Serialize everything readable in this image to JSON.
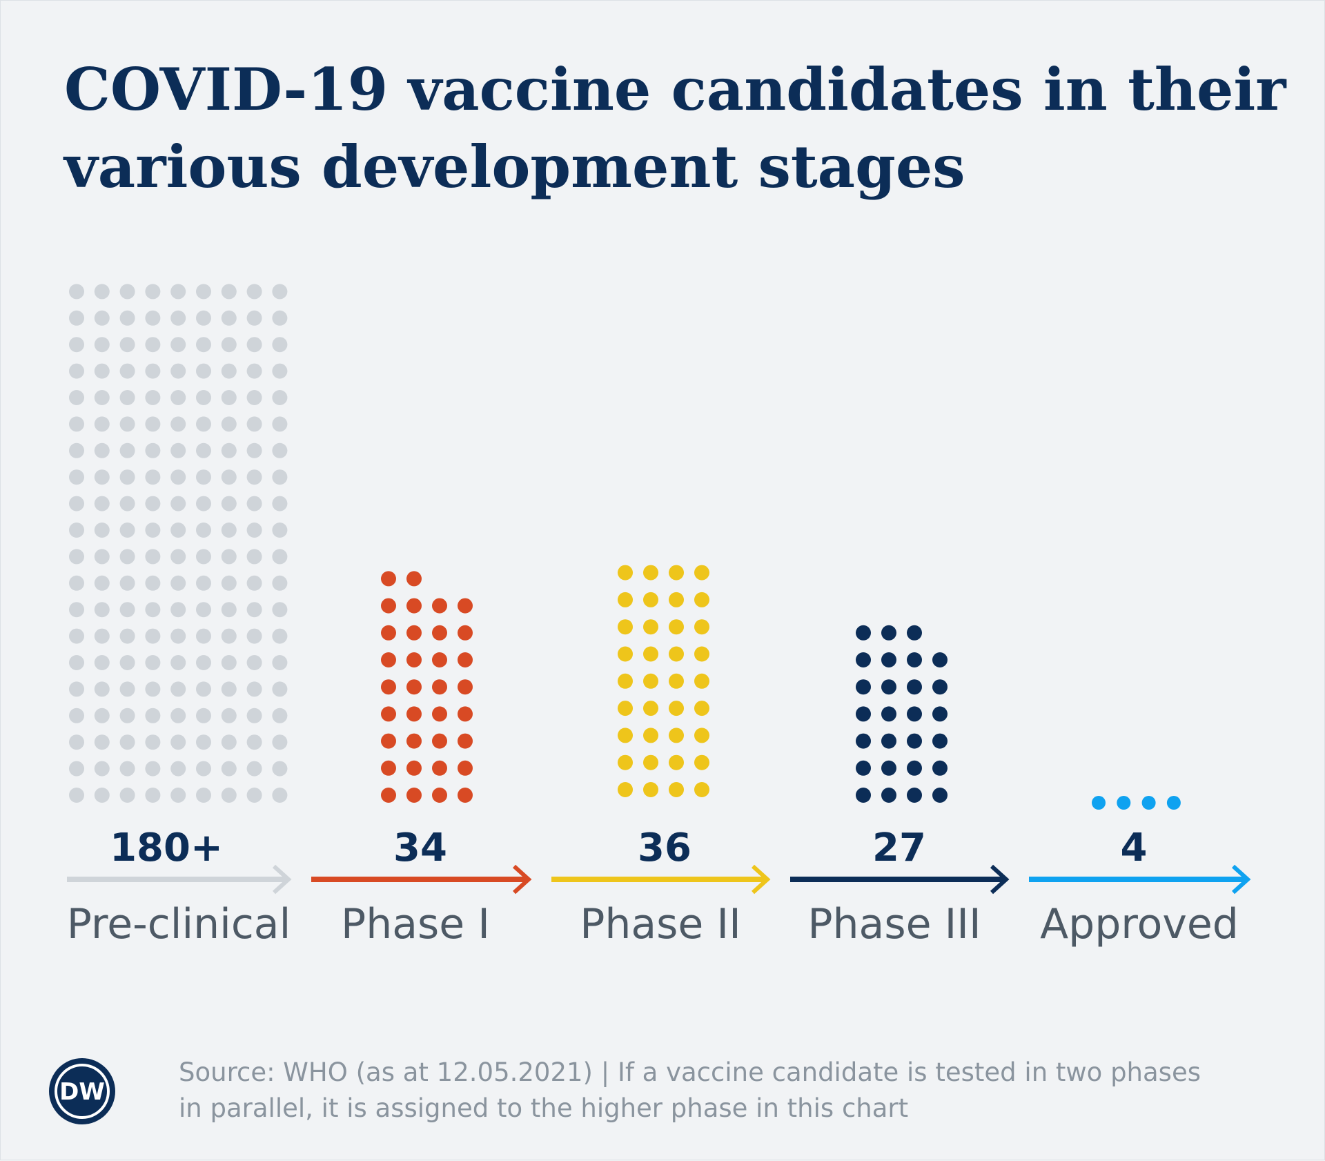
{
  "chart_data": {
    "type": "unit_dot_chart",
    "title": [
      "COVID-19 vaccine candidates in their",
      "various development stages"
    ],
    "categories": [
      "Pre-clinical",
      "Phase I",
      "Phase II",
      "Phase III",
      "Approved"
    ],
    "series": [
      {
        "name": "Pre-clinical",
        "count_label": "180+",
        "dots": 180,
        "dots_per_row": 9,
        "color": "#cfd4d9"
      },
      {
        "name": "Phase I",
        "count_label": "34",
        "dots": 34,
        "dots_per_row": 4,
        "color": "#d84a24"
      },
      {
        "name": "Phase II",
        "count_label": "36",
        "dots": 36,
        "dots_per_row": 4,
        "color": "#eec51b"
      },
      {
        "name": "Phase III",
        "count_label": "27",
        "dots": 27,
        "dots_per_row": 4,
        "color": "#0c2d57"
      },
      {
        "name": "Approved",
        "count_label": "4",
        "dots": 4,
        "dots_per_row": 4,
        "color": "#0fa2f0"
      }
    ],
    "source": [
      "Source: WHO (as at 12.05.2021) | If a vaccine candidate is tested in two phases",
      "in parallel, it is assigned to the higher phase in this chart"
    ]
  },
  "logo": {
    "text": "DW",
    "color": "#0c2d57"
  }
}
